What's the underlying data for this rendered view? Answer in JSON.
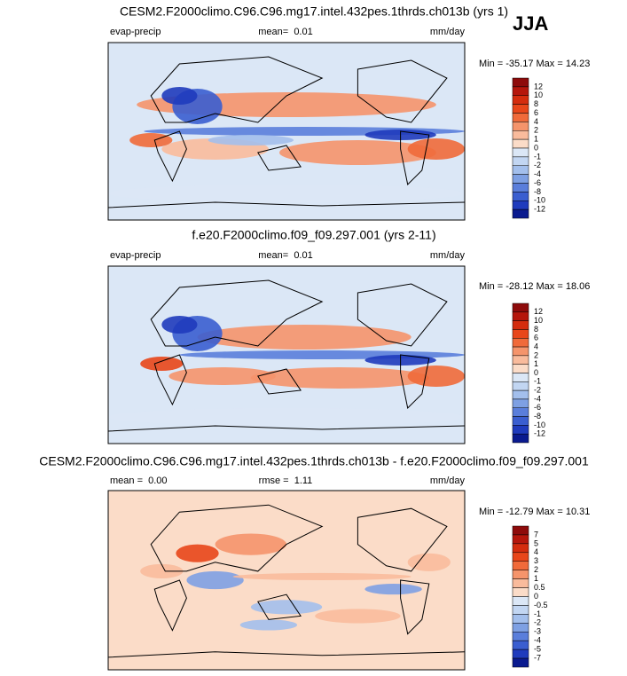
{
  "season": "JJA",
  "panels": [
    {
      "title": "CESM2.F2000climo.C96.C96.mg17.intel.432pes.1thrds.ch013b (yrs 1)",
      "left_text": "evap-precip",
      "center_text": "mean=  0.01",
      "units": "mm/day",
      "minmax": "Min = -35.17 Max = 14.23",
      "colorbar": {
        "labels": [
          "12",
          "10",
          "8",
          "6",
          "4",
          "2",
          "1",
          "0",
          "-1",
          "-2",
          "-4",
          "-6",
          "-8",
          "-10",
          "-12"
        ],
        "colors": [
          "#8e0b0b",
          "#b5160c",
          "#d42c0e",
          "#e8461a",
          "#f06a3a",
          "#f5946b",
          "#f9bb9c",
          "#fbdcc8",
          "#dbe7f6",
          "#c2d6f2",
          "#a3bfec",
          "#7ea0e3",
          "#5a7edb",
          "#3a5ed0",
          "#1f3bbd",
          "#0a1a8f"
        ]
      }
    },
    {
      "title": "f.e20.F2000climo.f09_f09.297.001 (yrs 2-11)",
      "left_text": "evap-precip",
      "center_text": "mean=  0.01",
      "units": "mm/day",
      "minmax": "Min = -28.12 Max = 18.06",
      "colorbar": {
        "labels": [
          "12",
          "10",
          "8",
          "6",
          "4",
          "2",
          "1",
          "0",
          "-1",
          "-2",
          "-4",
          "-6",
          "-8",
          "-10",
          "-12"
        ],
        "colors": [
          "#8e0b0b",
          "#b5160c",
          "#d42c0e",
          "#e8461a",
          "#f06a3a",
          "#f5946b",
          "#f9bb9c",
          "#fbdcc8",
          "#dbe7f6",
          "#c2d6f2",
          "#a3bfec",
          "#7ea0e3",
          "#5a7edb",
          "#3a5ed0",
          "#1f3bbd",
          "#0a1a8f"
        ]
      }
    },
    {
      "title": "CESM2.F2000climo.C96.C96.mg17.intel.432pes.1thrds.ch013b - f.e20.F2000climo.f09_f09.297.001",
      "left_text": "mean =  0.00",
      "center_text": "rmse =  1.11",
      "units": "mm/day",
      "minmax": "Min = -12.79 Max = 10.31",
      "colorbar": {
        "labels": [
          "7",
          "5",
          "4",
          "3",
          "2",
          "1",
          "0.5",
          "0",
          "-0.5",
          "-1",
          "-2",
          "-3",
          "-4",
          "-5",
          "-7"
        ],
        "colors": [
          "#8e0b0b",
          "#b5160c",
          "#d42c0e",
          "#e8461a",
          "#f06a3a",
          "#f5946b",
          "#f9bb9c",
          "#fbdcc8",
          "#dbe7f6",
          "#c2d6f2",
          "#a3bfec",
          "#7ea0e3",
          "#5a7edb",
          "#3a5ed0",
          "#1f3bbd",
          "#0a1a8f"
        ]
      }
    }
  ]
}
